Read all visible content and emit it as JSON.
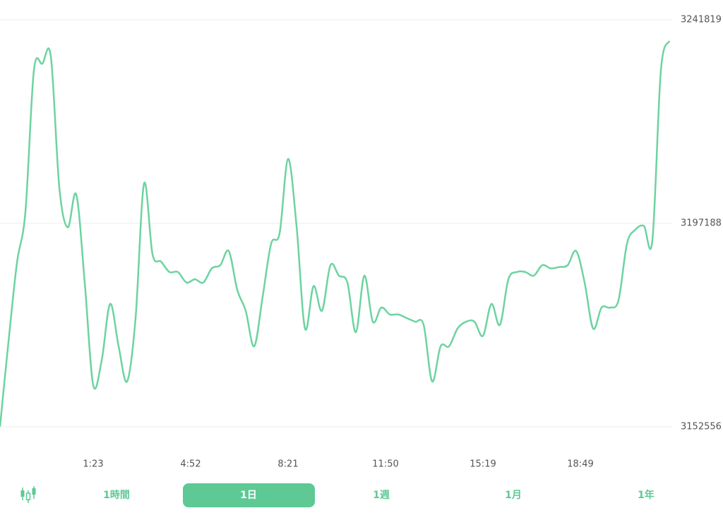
{
  "chart_data": {
    "type": "line",
    "series": [
      {
        "color": "#6dd3a0",
        "values": [
          3152600,
          3171200,
          3188500,
          3199700,
          3230700,
          3232200,
          3233800,
          3205100,
          3196300,
          3203500,
          3184200,
          3161700,
          3167100,
          3179500,
          3170200,
          3162500,
          3176400,
          3205900,
          3190400,
          3188800,
          3186500,
          3186500,
          3184200,
          3184900,
          3184200,
          3187300,
          3188000,
          3191100,
          3182600,
          3178000,
          3170200,
          3181100,
          3192700,
          3195000,
          3211300,
          3196600,
          3174100,
          3183400,
          3178000,
          3188000,
          3185700,
          3184200,
          3173300,
          3185700,
          3175600,
          3178700,
          3177200,
          3177200,
          3176400,
          3175600,
          3174900,
          3162500,
          3170200,
          3170200,
          3174100,
          3175600,
          3175600,
          3172500,
          3179500,
          3174900,
          3184900,
          3186500,
          3186500,
          3185700,
          3188000,
          3187300,
          3187600,
          3188000,
          3191100,
          3184200,
          3174100,
          3178700,
          3178700,
          3180300,
          3192700,
          3195800,
          3196600,
          3193500,
          3230700,
          3237200
        ]
      }
    ],
    "xlim": [
      0,
      79
    ],
    "xticks": [
      {
        "value": 11,
        "label": "1:23"
      },
      {
        "value": 22.5,
        "label": "4:52"
      },
      {
        "value": 34,
        "label": "8:21"
      },
      {
        "value": 45.5,
        "label": "11:50"
      },
      {
        "value": 57,
        "label": "15:19"
      },
      {
        "value": 68.5,
        "label": "18:49"
      }
    ],
    "ylim": [
      3152556,
      3241819
    ],
    "yticks": [
      3152556,
      3197188,
      3241819
    ],
    "grid": true
  },
  "tabs": [
    "1時間",
    "1日",
    "1週",
    "1月",
    "1年"
  ]
}
